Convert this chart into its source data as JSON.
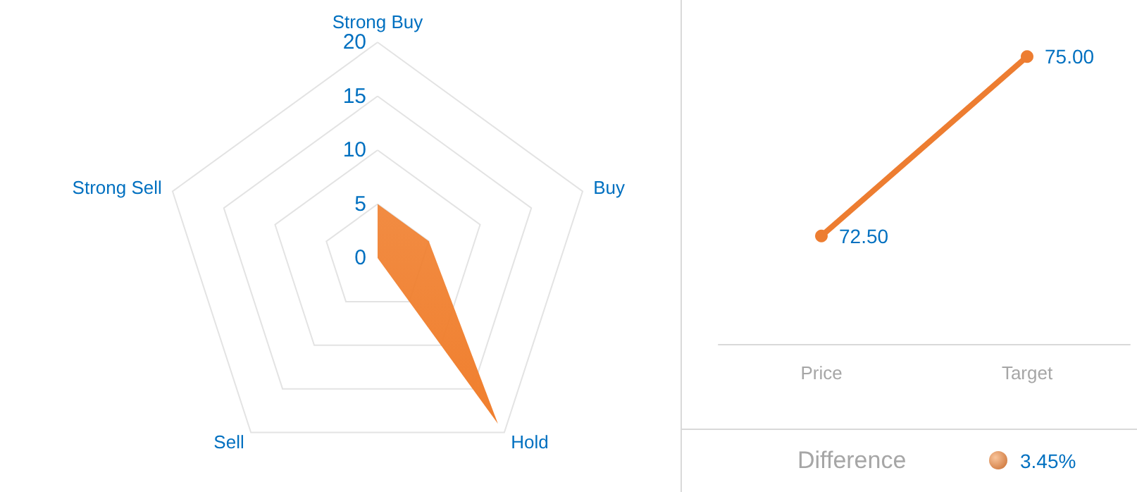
{
  "chart_data": [
    {
      "type": "radar",
      "categories": [
        "Strong Buy",
        "Buy",
        "Hold",
        "Sell",
        "Strong Sell"
      ],
      "series": [
        {
          "color": "#f07f2e",
          "values": [
            5,
            5,
            19,
            0,
            0
          ]
        }
      ],
      "ylim": [
        0,
        20
      ],
      "yticks": [
        0,
        5,
        10,
        15,
        20
      ],
      "grid": true,
      "marker": "none"
    },
    {
      "type": "line",
      "categories": [
        "Price",
        "Target"
      ],
      "values": [
        72.5,
        75
      ],
      "color": "#ed7d31",
      "value_labels": [
        "72.50",
        "75.00"
      ],
      "marker": "circle",
      "tick_labels": "x",
      "annotations": [
        "Difference",
        "3.45%"
      ]
    }
  ]
}
